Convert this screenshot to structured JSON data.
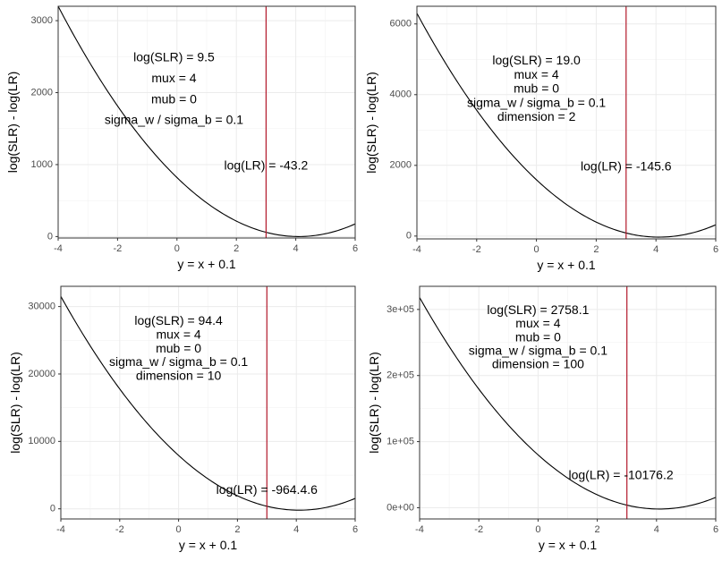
{
  "chart_data": [
    {
      "type": "line",
      "xlabel": "y = x + 0.1",
      "ylabel": "log(SLR) - log(LR)",
      "xlim": [
        -4,
        6
      ],
      "ylim": [
        -20,
        3200
      ],
      "x_ticks": [
        "-4",
        "-2",
        "0",
        "2",
        "4",
        "6"
      ],
      "y_tick_values": [
        0,
        1000,
        2000,
        3000
      ],
      "y_tick_labels": [
        "0",
        "1000",
        "2000",
        "3000"
      ],
      "grid": true,
      "vline_x": 3.0,
      "vline_color": "#b2182b",
      "curve": {
        "x0": -4,
        "x1": 6,
        "vertex_x": 4.1,
        "vertex_y": 0,
        "y_at_x0": 3200
      },
      "annotation_lines": [
        "log(SLR) = 9.5",
        "mux = 4",
        "mub = 0",
        "sigma_w / sigma_b = 0.1"
      ],
      "annotation_x": -0.1,
      "annotation_top_y": 2480,
      "annotation_step": 290,
      "lr_label": "log(LR) = -43.2",
      "lr_x": 3.0,
      "lr_y": 980
    },
    {
      "type": "line",
      "xlabel": "y = x + 0.1",
      "ylabel": "log(SLR) - log(LR)",
      "xlim": [
        -4,
        6
      ],
      "ylim": [
        -80,
        6500
      ],
      "x_ticks": [
        "-4",
        "-2",
        "0",
        "2",
        "4",
        "6"
      ],
      "y_tick_values": [
        0,
        2000,
        4000,
        6000
      ],
      "y_tick_labels": [
        "0",
        "2000",
        "4000",
        "6000"
      ],
      "grid": true,
      "vline_x": 3.0,
      "vline_color": "#b2182b",
      "curve": {
        "x0": -4,
        "x1": 6,
        "vertex_x": 4.1,
        "vertex_y": -30,
        "y_at_x0": 6300
      },
      "annotation_lines": [
        "log(SLR) = 19.0",
        "mux = 4",
        "mub = 0",
        "sigma_w / sigma_b = 0.1",
        "dimension = 2"
      ],
      "annotation_x": 0.0,
      "annotation_top_y": 4950,
      "annotation_step": 400,
      "lr_label": "log(LR) = -145.6",
      "lr_x": 3.0,
      "lr_y": 1950
    },
    {
      "type": "line",
      "xlabel": "y = x + 0.1",
      "ylabel": "log(SLR) - log(LR)",
      "xlim": [
        -4,
        6
      ],
      "ylim": [
        -1500,
        33000
      ],
      "x_ticks": [
        "-4",
        "-2",
        "0",
        "2",
        "4",
        "6"
      ],
      "y_tick_values": [
        0,
        10000,
        20000,
        30000
      ],
      "y_tick_labels": [
        "0",
        "10000",
        "20000",
        "30000"
      ],
      "grid": true,
      "vline_x": 3.0,
      "vline_color": "#b2182b",
      "curve": {
        "x0": -4,
        "x1": 6,
        "vertex_x": 4.1,
        "vertex_y": -200,
        "y_at_x0": 31500
      },
      "annotation_lines": [
        "log(SLR) = 94.4",
        "mux = 4",
        "mub = 0",
        "sigma_w / sigma_b = 0.1",
        "dimension = 10"
      ],
      "annotation_x": 0.0,
      "annotation_top_y": 27800,
      "annotation_step": 2050,
      "lr_label": "log(LR) = -964.4.6",
      "lr_x": 3.0,
      "lr_y": 2700
    },
    {
      "type": "line",
      "xlabel": "y = x + 0.1",
      "ylabel": "log(SLR) - log(LR)",
      "xlim": [
        -4,
        6
      ],
      "ylim": [
        -17000,
        335000
      ],
      "x_ticks": [
        "-4",
        "-2",
        "0",
        "2",
        "4",
        "6"
      ],
      "y_tick_values": [
        0,
        100000,
        200000,
        300000
      ],
      "y_tick_labels": [
        "0e+00",
        "1e+05",
        "2e+05",
        "3e+05"
      ],
      "grid": true,
      "vline_x": 3.0,
      "vline_color": "#b2182b",
      "curve": {
        "x0": -4,
        "x1": 6,
        "vertex_x": 4.1,
        "vertex_y": -2000,
        "y_at_x0": 318000
      },
      "annotation_lines": [
        "log(SLR) = 2758.1",
        "mux = 4",
        "mub = 0",
        "sigma_w / sigma_b = 0.1",
        "dimension = 100"
      ],
      "annotation_x": 0.0,
      "annotation_top_y": 298000,
      "annotation_step": 20500,
      "lr_label": "log(LR) = -10176.2",
      "lr_x": 2.8,
      "lr_y": 48000
    }
  ]
}
